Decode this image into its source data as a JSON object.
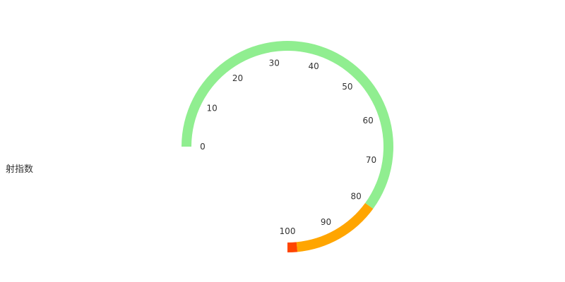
{
  "chart_data": {
    "type": "gauge",
    "label": "射指数",
    "min": 0,
    "max": 100,
    "ticks": [
      0,
      10,
      20,
      30,
      40,
      50,
      60,
      70,
      80,
      90,
      100
    ],
    "bands": [
      {
        "from": 0,
        "to": 80,
        "color": "#90ee90"
      },
      {
        "from": 80,
        "to": 98,
        "color": "#ffa500"
      },
      {
        "from": 98,
        "to": 100,
        "color": "#ff4500"
      }
    ]
  }
}
